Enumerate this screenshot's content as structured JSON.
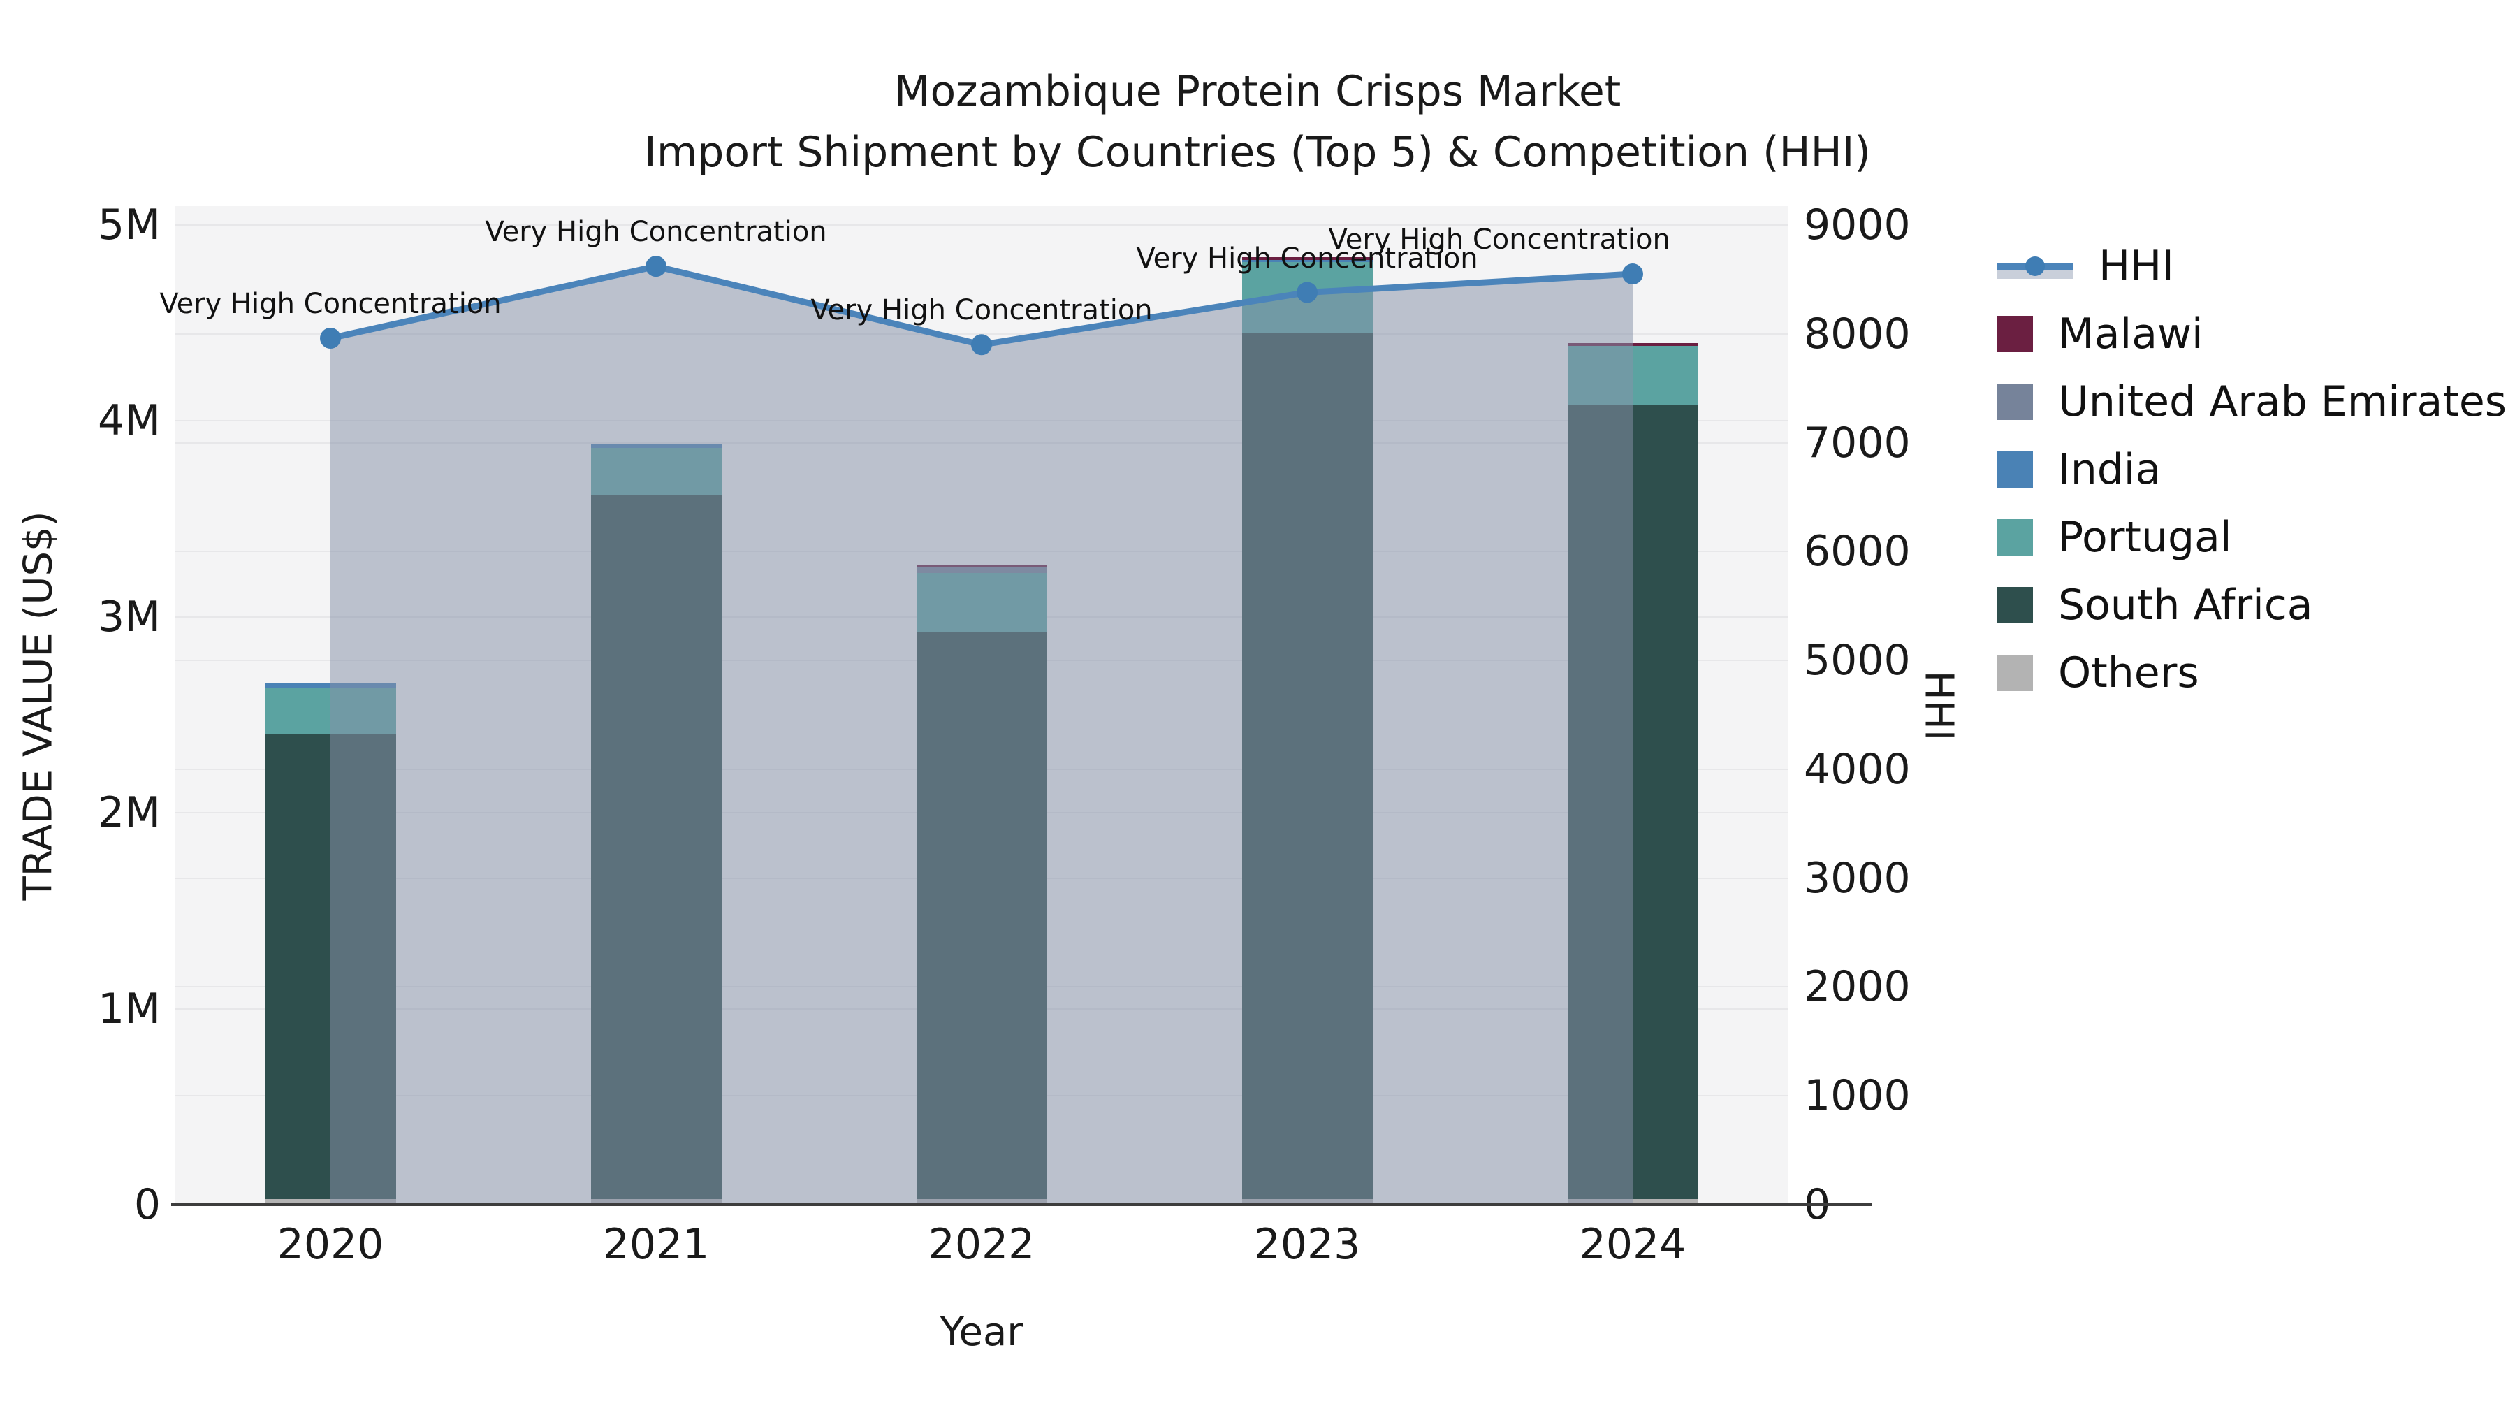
{
  "title": {
    "line1": "Mozambique Protein Crisps Market",
    "line2": "Import Shipment by Countries (Top 5) & Competition (HHI)"
  },
  "axes": {
    "x_title": "Year",
    "y_left_title": "TRADE VALUE (US$)",
    "y_right_title": "HHI",
    "y_left_ticks": [
      {
        "value": 0,
        "label": "0"
      },
      {
        "value": 1000000,
        "label": "1M"
      },
      {
        "value": 2000000,
        "label": "2M"
      },
      {
        "value": 3000000,
        "label": "3M"
      },
      {
        "value": 4000000,
        "label": "4M"
      },
      {
        "value": 5000000,
        "label": "5M"
      }
    ],
    "y_right_ticks": [
      {
        "value": 0,
        "label": "0"
      },
      {
        "value": 1000,
        "label": "1000"
      },
      {
        "value": 2000,
        "label": "2000"
      },
      {
        "value": 3000,
        "label": "3000"
      },
      {
        "value": 4000,
        "label": "4000"
      },
      {
        "value": 5000,
        "label": "5000"
      },
      {
        "value": 6000,
        "label": "6000"
      },
      {
        "value": 7000,
        "label": "7000"
      },
      {
        "value": 8000,
        "label": "8000"
      },
      {
        "value": 9000,
        "label": "9000"
      }
    ]
  },
  "colors": {
    "HHI": "#4b84ba",
    "HHI_marker": "#3f7db4",
    "HHI_fill": "rgba(134,146,168,0.52)",
    "Malawi": "#6b1f41",
    "United Arab Emirates": "#76839a",
    "India": "#4a82b5",
    "Portugal": "#5ba3a1",
    "South Africa": "#2e4f4d",
    "Others": "#b3b3b3",
    "plot_bg": "#f4f4f5",
    "grid": "#e7e7e9",
    "axis_line": "#3d3d3d"
  },
  "legend": [
    {
      "label": "HHI",
      "glyph": "line"
    },
    {
      "label": "Malawi",
      "glyph": "square"
    },
    {
      "label": "United Arab Emirates",
      "glyph": "square"
    },
    {
      "label": "India",
      "glyph": "square"
    },
    {
      "label": "Portugal",
      "glyph": "square"
    },
    {
      "label": "South Africa",
      "glyph": "square"
    },
    {
      "label": "Others",
      "glyph": "square"
    }
  ],
  "chart_data": {
    "type": "combo: stacked-bar + line (twin y axes)",
    "title": "Mozambique Protein Crisps Market — Import Shipment by Countries (Top 5) & Competition (HHI)",
    "xlabel": "Year",
    "ylabel_left": "TRADE VALUE (US$)",
    "ylabel_right": "HHI",
    "categories": [
      "2020",
      "2021",
      "2022",
      "2023",
      "2024"
    ],
    "ylim_left": [
      0,
      5096000
    ],
    "ylim_right": [
      0,
      9173
    ],
    "grid": true,
    "legend_position": "right",
    "stack_order_bottom_to_top": [
      "Others",
      "South Africa",
      "Portugal",
      "India",
      "United Arab Emirates",
      "Malawi"
    ],
    "series": [
      {
        "name": "Others",
        "values": [
          29000,
          29000,
          29000,
          29000,
          29000
        ]
      },
      {
        "name": "South Africa",
        "values": [
          2370000,
          3590000,
          2890000,
          4420000,
          4050000
        ]
      },
      {
        "name": "Portugal",
        "values": [
          235000,
          243000,
          303000,
          360000,
          303000
        ]
      },
      {
        "name": "India",
        "values": [
          25000,
          18000,
          0,
          14000,
          0
        ]
      },
      {
        "name": "United Arab Emirates",
        "values": [
          0,
          0,
          32000,
          0,
          0
        ]
      },
      {
        "name": "Malawi",
        "values": [
          0,
          0,
          11000,
          11000,
          14000
        ]
      }
    ],
    "line_series": {
      "name": "HHI",
      "axis": "right",
      "values": [
        7960,
        8620,
        7900,
        8380,
        8550
      ],
      "area_fill": true,
      "point_annotations": [
        "Very High Concentration",
        "Very High Concentration",
        "Very High Concentration",
        "Very High Concentration",
        "Very High Concentration"
      ]
    }
  }
}
